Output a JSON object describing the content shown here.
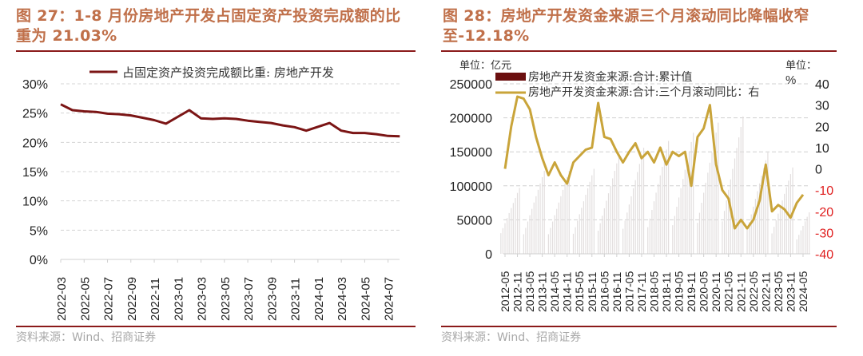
{
  "left": {
    "title_line1": "图 27：1-8 月份房地产开发占固定资产投资完成额的比",
    "title_line2": "重为 21.03%",
    "source": "资料来源：Wind、招商证券"
  },
  "right": {
    "title_line1": "图 28：房地产开发资金来源三个月滚动同比降幅收窄",
    "title_line2": "至-12.18%",
    "source": "资料来源：Wind、招商证券",
    "unit_left": "单位：亿元",
    "unit_right_1": "单位：",
    "unit_right_2": "%"
  },
  "colors": {
    "title": "#c0704a",
    "rule": "#8b1a1a",
    "left_line": "#7b1515",
    "right_bar": "#6b0f0f",
    "right_bar_drawn": "#e2dede",
    "right_line": "#c9a43a",
    "negative_tick": "#e02020"
  },
  "chart_data": [
    {
      "type": "line",
      "title": "1-8月份房地产开发占固定资产投资完成额的比重为21.03%",
      "legend": [
        "占固定资产投资完成额比重: 房地产开发"
      ],
      "legend_position": "top",
      "xlabel": "",
      "ylabel": "",
      "ylim": [
        0,
        30
      ],
      "y_ticks": [
        "0%",
        "5%",
        "10%",
        "15%",
        "20%",
        "25%",
        "30%"
      ],
      "x_ticks": [
        "2022-03",
        "2022-05",
        "2022-07",
        "2022-09",
        "2022-11",
        "2023-01",
        "2023-03",
        "2023-05",
        "2023-07",
        "2023-09",
        "2023-11",
        "2024-01",
        "2024-03",
        "2024-05",
        "2024-07"
      ],
      "grid": true,
      "x": [
        "2022-03",
        "2022-04",
        "2022-05",
        "2022-06",
        "2022-07",
        "2022-08",
        "2022-09",
        "2022-10",
        "2022-11",
        "2022-12",
        "2023-02",
        "2023-03",
        "2023-04",
        "2023-05",
        "2023-06",
        "2023-07",
        "2023-08",
        "2023-09",
        "2023-10",
        "2023-11",
        "2023-12",
        "2024-02",
        "2024-03",
        "2024-04",
        "2024-05",
        "2024-06",
        "2024-07",
        "2024-08"
      ],
      "series": [
        {
          "name": "占固定资产投资完成额比重: 房地产开发",
          "values": [
            26.5,
            25.5,
            25.3,
            25.2,
            24.9,
            24.8,
            24.6,
            24.2,
            23.8,
            23.2,
            25.5,
            24.1,
            24.0,
            24.1,
            24.0,
            23.7,
            23.5,
            23.3,
            22.9,
            22.6,
            22.0,
            23.3,
            22.0,
            21.6,
            21.6,
            21.4,
            21.1,
            21.03
          ]
        }
      ]
    },
    {
      "type": "bar+line",
      "title": "房地产开发资金来源三个月滚动同比降幅收窄至-12.18%",
      "legend": [
        "房地产开发资金来源:合计:累计值",
        "房地产开发资金来源:合计:三个月滚动同比：右"
      ],
      "legend_position": "top",
      "ylabel_left": "单位：亿元",
      "ylabel_right": "单位：%",
      "ylim_left": [
        0,
        250000
      ],
      "ylim_right": [
        -40,
        40
      ],
      "y_ticks_left": [
        "0",
        "50000",
        "100000",
        "150000",
        "200000",
        "250000"
      ],
      "y_ticks_right": [
        "-40",
        "-30",
        "-20",
        "-10",
        "0",
        "10",
        "20",
        "30",
        "40"
      ],
      "x_ticks": [
        "2012-05",
        "2012-11",
        "2013-05",
        "2013-11",
        "2014-05",
        "2014-11",
        "2015-05",
        "2015-11",
        "2016-05",
        "2016-11",
        "2017-05",
        "2017-11",
        "2018-05",
        "2018-11",
        "2019-05",
        "2019-11",
        "2020-05",
        "2020-11",
        "2021-05",
        "2021-11",
        "2022-05",
        "2022-11",
        "2023-05",
        "2023-11",
        "2024-05"
      ],
      "grid": true,
      "series": [
        {
          "name": "房地产开发资金来源:合计:累计值",
          "axis": "left",
          "type": "bar",
          "annual_peaks_dec": {
            "2012": 97000,
            "2013": 122000,
            "2014": 122000,
            "2015": 125000,
            "2016": 144000,
            "2017": 156000,
            "2018": 166000,
            "2019": 178000,
            "2020": 193000,
            "2021": 202000,
            "2022": 149000,
            "2023": 127000
          },
          "values_note": "cumulative within each year, rising from ~Feb to Dec then resetting"
        },
        {
          "name": "房地产开发资金来源:合计:三个月滚动同比：右",
          "axis": "right",
          "type": "line",
          "x": [
            "2012-05",
            "2012-08",
            "2012-11",
            "2013-02",
            "2013-05",
            "2013-08",
            "2013-11",
            "2014-02",
            "2014-05",
            "2014-08",
            "2014-11",
            "2015-02",
            "2015-05",
            "2015-08",
            "2015-11",
            "2016-02",
            "2016-05",
            "2016-08",
            "2016-11",
            "2017-02",
            "2017-05",
            "2017-08",
            "2017-11",
            "2018-02",
            "2018-05",
            "2018-08",
            "2018-11",
            "2019-02",
            "2019-05",
            "2019-08",
            "2019-11",
            "2020-02",
            "2020-05",
            "2020-08",
            "2020-11",
            "2021-02",
            "2021-05",
            "2021-08",
            "2021-11",
            "2022-02",
            "2022-05",
            "2022-08",
            "2022-11",
            "2023-02",
            "2023-05",
            "2023-08",
            "2023-11",
            "2024-02",
            "2024-05"
          ],
          "values": [
            0,
            20,
            34,
            33,
            28,
            15,
            5,
            -3,
            3,
            -3,
            -7,
            3,
            6,
            9,
            10,
            31,
            15,
            14,
            8,
            3,
            8,
            12,
            5,
            8,
            3,
            10,
            2,
            8,
            6,
            8,
            -8,
            15,
            19,
            30,
            2,
            -10,
            -14,
            -28,
            -24,
            -28,
            -24,
            -15,
            2,
            -20,
            -17,
            -19,
            -23,
            -16,
            -12.18
          ]
        }
      ]
    }
  ]
}
